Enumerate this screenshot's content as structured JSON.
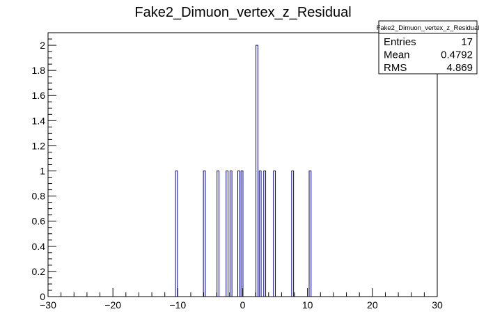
{
  "chart_data": {
    "type": "bar",
    "title": "Fake2_Dimuon_vertex_z_Residual",
    "xlabel": "",
    "ylabel": "",
    "xlim": [
      -30,
      30
    ],
    "ylim": [
      0,
      2.1
    ],
    "bin_width": 0.3,
    "x_ticks": [
      -30,
      -20,
      -10,
      0,
      10,
      20,
      30
    ],
    "x_tick_labels": [
      "−30",
      "−20",
      "−10",
      "0",
      "10",
      "20",
      "30"
    ],
    "y_ticks": [
      0,
      0.2,
      0.4,
      0.6,
      0.8,
      1,
      1.2,
      1.4,
      1.6,
      1.8,
      2
    ],
    "y_tick_labels": [
      "0",
      "0.2",
      "0.4",
      "0.6",
      "0.8",
      "1",
      "1.2",
      "1.4",
      "1.6",
      "1.8",
      "2"
    ],
    "bars": [
      {
        "x": -10.2,
        "y": 1
      },
      {
        "x": -5.9,
        "y": 1
      },
      {
        "x": -3.8,
        "y": 1
      },
      {
        "x": -2.4,
        "y": 1
      },
      {
        "x": -1.8,
        "y": 1
      },
      {
        "x": -0.6,
        "y": 1
      },
      {
        "x": -0.1,
        "y": 1
      },
      {
        "x": 2.2,
        "y": 2
      },
      {
        "x": 2.7,
        "y": 1
      },
      {
        "x": 3.4,
        "y": 1
      },
      {
        "x": 4.9,
        "y": 1
      },
      {
        "x": 7.7,
        "y": 1
      },
      {
        "x": 10.4,
        "y": 1
      }
    ],
    "line_color": "#000099",
    "grid": false,
    "stats_box": {
      "title": "Fake2_Dimuon_vertex_z_Residual",
      "rows": [
        {
          "label": "Entries",
          "value": "17"
        },
        {
          "label": "Mean",
          "value": "0.4792"
        },
        {
          "label": "RMS",
          "value": "4.869"
        }
      ],
      "placement": "top-right"
    }
  }
}
